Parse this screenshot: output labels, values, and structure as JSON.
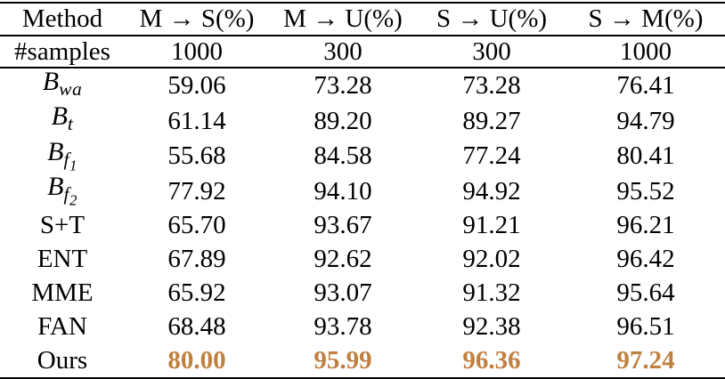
{
  "table": {
    "headers": {
      "method": "Method",
      "col1": "M → S(%)",
      "col2": "M → U(%)",
      "col3": "S → U(%)",
      "col4": "S → M(%)"
    },
    "samples_row": {
      "label": "#samples",
      "values": [
        "1000",
        "300",
        "300",
        "1000"
      ]
    },
    "rows": [
      {
        "method": {
          "base": "B",
          "sub": "wa",
          "subsub": ""
        },
        "values": [
          "59.06",
          "73.28",
          "73.28",
          "76.41"
        ]
      },
      {
        "method": {
          "base": "B",
          "sub": "t",
          "subsub": ""
        },
        "values": [
          "61.14",
          "89.20",
          "89.27",
          "94.79"
        ]
      },
      {
        "method": {
          "base": "B",
          "sub": "f",
          "subsub": "1"
        },
        "values": [
          "55.68",
          "84.58",
          "77.24",
          "80.41"
        ]
      },
      {
        "method": {
          "base": "B",
          "sub": "f",
          "subsub": "2"
        },
        "values": [
          "77.92",
          "94.10",
          "94.92",
          "95.52"
        ]
      },
      {
        "method": {
          "base": "S+T"
        },
        "values": [
          "65.70",
          "93.67",
          "91.21",
          "96.21"
        ]
      },
      {
        "method": {
          "base": "ENT"
        },
        "values": [
          "67.89",
          "92.62",
          "92.02",
          "96.42"
        ]
      },
      {
        "method": {
          "base": "MME"
        },
        "values": [
          "65.92",
          "93.07",
          "91.32",
          "95.64"
        ]
      },
      {
        "method": {
          "base": "FAN"
        },
        "values": [
          "68.48",
          "93.78",
          "92.38",
          "96.51"
        ]
      },
      {
        "method": {
          "base": "Ours"
        },
        "values": [
          "80.00",
          "95.99",
          "96.36",
          "97.24"
        ],
        "highlight": true
      }
    ],
    "colors": {
      "highlight_text": "#bf8040",
      "body_text": "#000000",
      "rule": "#000000",
      "background": "#ffffff"
    }
  }
}
